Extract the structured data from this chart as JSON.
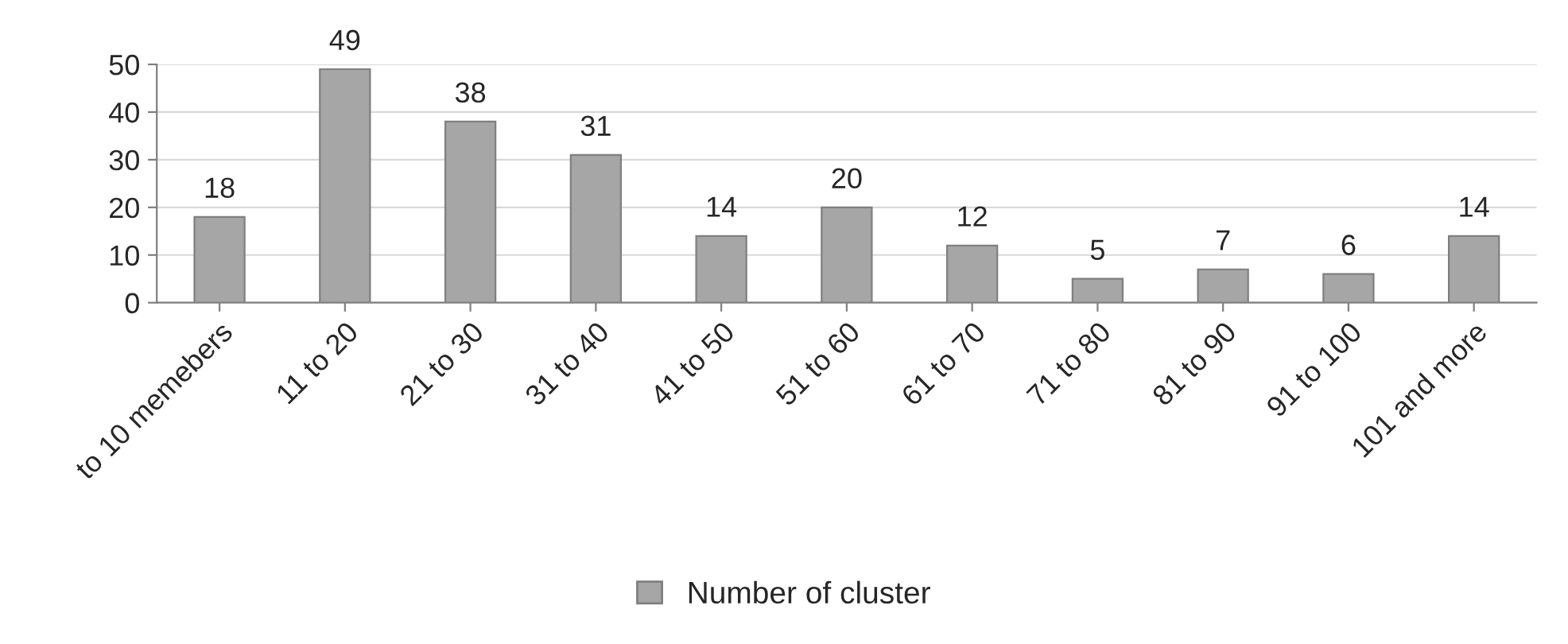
{
  "chart_data": {
    "type": "bar",
    "categories": [
      "to 10 memebers",
      "11 to 20",
      "21 to 30",
      "31 to 40",
      "41 to 50",
      "51 to 60",
      "61 to 70",
      "71 to 80",
      "81 to 90",
      "91 to 100",
      "101 and more"
    ],
    "series": [
      {
        "name": "Number of cluster",
        "color": "#a6a6a6",
        "values": [
          18,
          49,
          38,
          31,
          14,
          20,
          12,
          5,
          7,
          6,
          14
        ]
      }
    ],
    "ylim": [
      0,
      50
    ],
    "yticks": [
      0,
      10,
      20,
      30,
      40,
      50
    ],
    "grid": "y",
    "legend": "bottom",
    "data_labels": true
  }
}
